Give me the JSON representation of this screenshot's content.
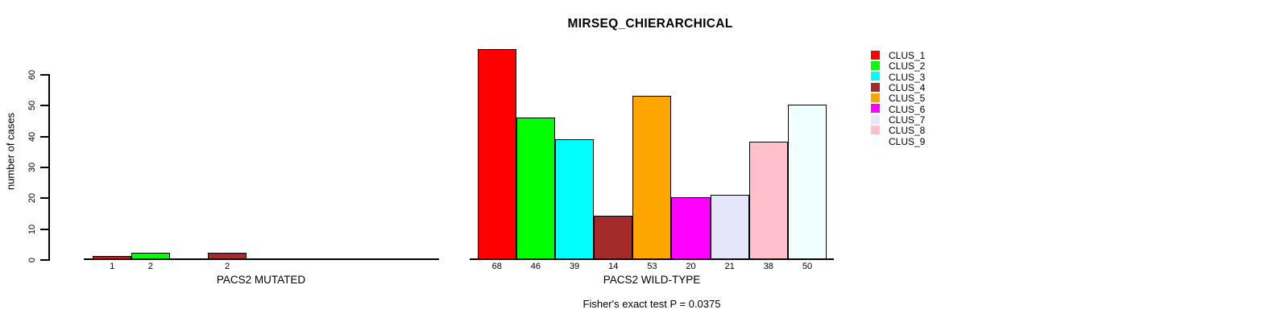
{
  "chart_data": {
    "type": "bar",
    "title": "MIRSEQ_CHIERARCHICAL",
    "ylabel": "number of cases",
    "ylim": [
      0,
      60
    ],
    "yticks": [
      0,
      10,
      20,
      30,
      40,
      50,
      60
    ],
    "grid": false,
    "legend_position": "right",
    "series": [
      {
        "name": "CLUS_1",
        "color": "#FF0000"
      },
      {
        "name": "CLUS_2",
        "color": "#00FF00"
      },
      {
        "name": "CLUS_3",
        "color": "#00FFFF"
      },
      {
        "name": "CLUS_4",
        "color": "#A52A2A"
      },
      {
        "name": "CLUS_5",
        "color": "#FFA500"
      },
      {
        "name": "CLUS_6",
        "color": "#FF00FF"
      },
      {
        "name": "CLUS_7",
        "color": "#E6E6FA"
      },
      {
        "name": "CLUS_8",
        "color": "#FFC0CB"
      },
      {
        "name": "CLUS_9",
        "color": "#F0FFFF"
      }
    ],
    "panels": [
      {
        "xlabel": "PACS2 MUTATED",
        "categories": [
          "CLUS_1",
          "CLUS_2",
          "CLUS_3",
          "CLUS_4",
          "CLUS_5",
          "CLUS_6",
          "CLUS_7",
          "CLUS_8",
          "CLUS_9"
        ],
        "values": [
          1,
          2,
          0,
          2,
          0,
          0,
          0,
          0,
          0
        ],
        "bar_labels": [
          "1",
          "2",
          "",
          "2",
          "",
          "",
          "",
          "",
          ""
        ]
      },
      {
        "xlabel": "PACS2 WILD-TYPE",
        "categories": [
          "CLUS_1",
          "CLUS_2",
          "CLUS_3",
          "CLUS_4",
          "CLUS_5",
          "CLUS_6",
          "CLUS_7",
          "CLUS_8",
          "CLUS_9"
        ],
        "values": [
          68,
          46,
          39,
          14,
          53,
          20,
          21,
          38,
          50
        ],
        "bar_labels": [
          "68",
          "46",
          "39",
          "14",
          "53",
          "20",
          "21",
          "38",
          "50"
        ]
      }
    ],
    "footnote": "Fisher's exact test P = 0.0375"
  }
}
